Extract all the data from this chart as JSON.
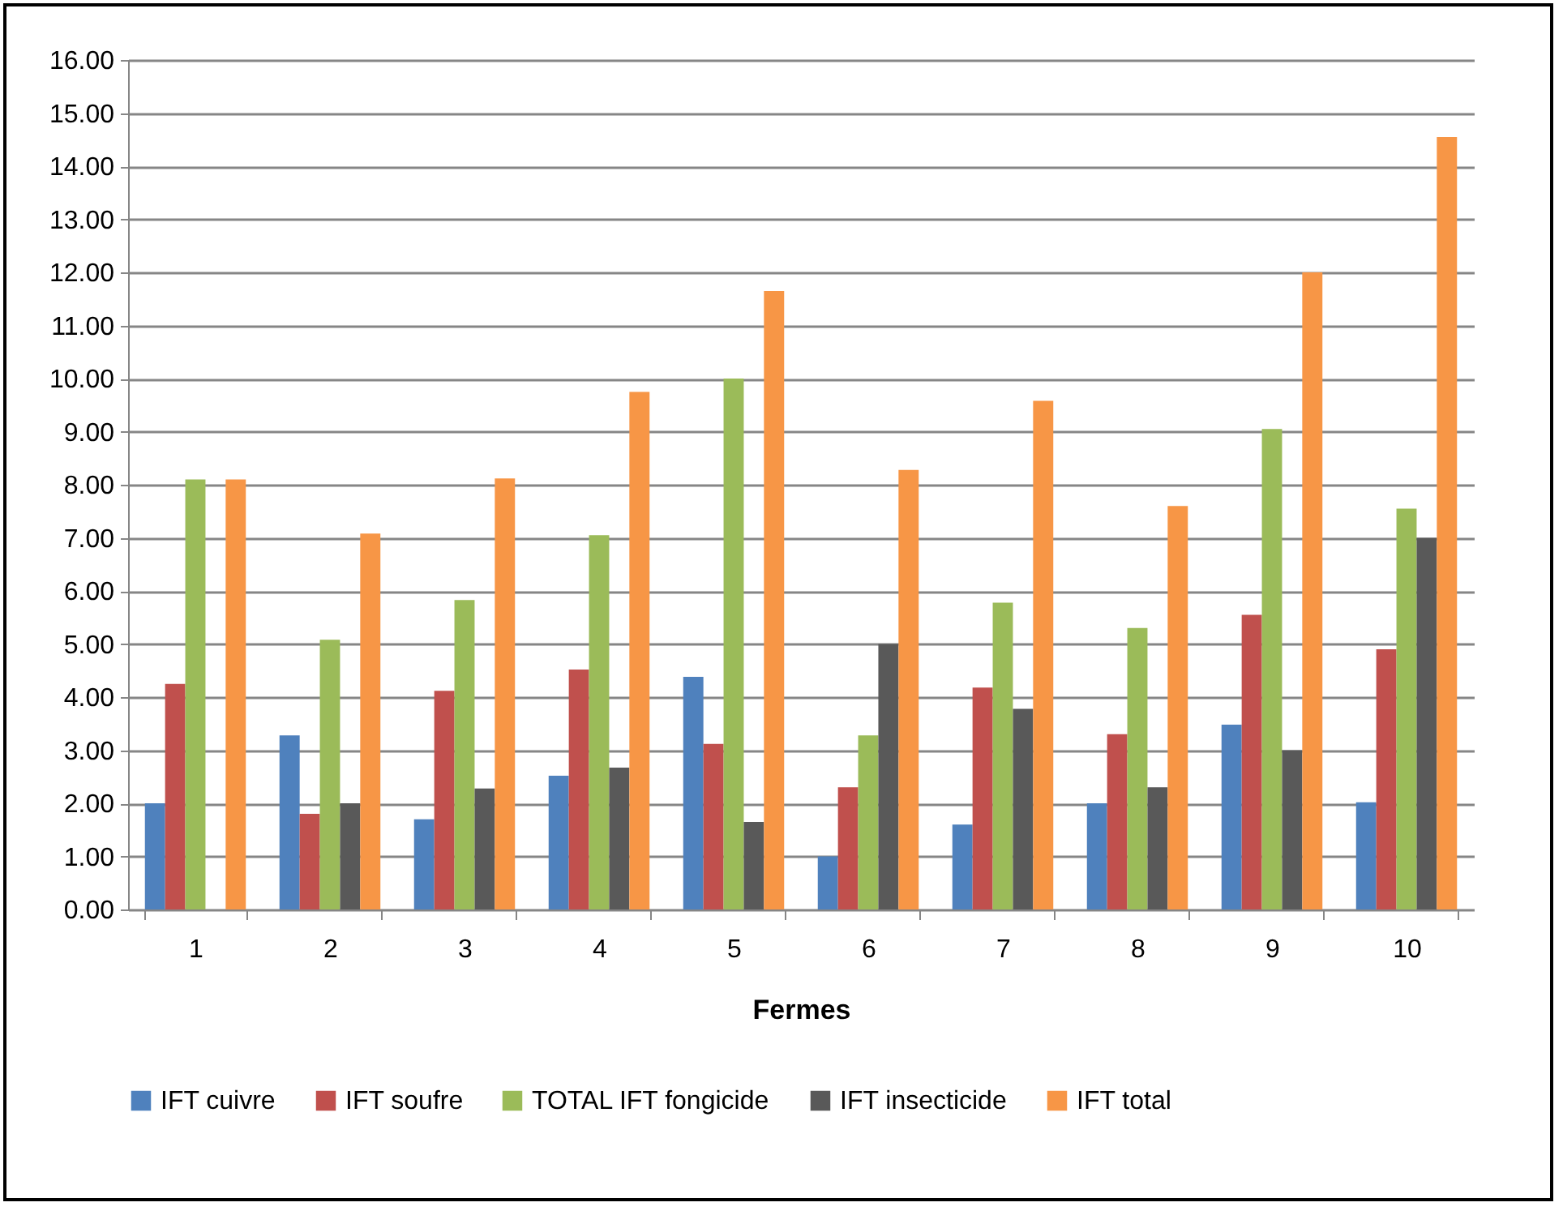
{
  "chart_data": {
    "type": "bar",
    "xlabel": "Fermes",
    "categories": [
      "1",
      "2",
      "3",
      "4",
      "5",
      "6",
      "7",
      "8",
      "9",
      "10"
    ],
    "series": [
      {
        "name": "IFT cuivre",
        "color": "#4f81bd",
        "values": [
          2.0,
          3.28,
          1.7,
          2.52,
          4.38,
          1.0,
          1.6,
          2.0,
          3.48,
          2.02
        ]
      },
      {
        "name": "IFT soufre",
        "color": "#c0504d",
        "values": [
          4.25,
          1.8,
          4.12,
          4.52,
          3.12,
          2.3,
          4.18,
          3.3,
          5.55,
          4.9
        ]
      },
      {
        "name": "TOTAL IFT fongicide",
        "color": "#9bbb59",
        "values": [
          8.1,
          5.08,
          5.83,
          7.05,
          10.0,
          3.28,
          5.78,
          5.3,
          9.05,
          7.55
        ]
      },
      {
        "name": "IFT insecticide",
        "color": "#595959",
        "values": [
          0,
          2.0,
          2.28,
          2.67,
          1.65,
          5.0,
          3.78,
          2.3,
          3.0,
          7.0
        ]
      },
      {
        "name": "IFT total",
        "color": "#f79646",
        "values": [
          8.1,
          7.08,
          8.12,
          9.75,
          11.65,
          8.28,
          9.58,
          7.6,
          12.0,
          14.55
        ]
      }
    ],
    "ylim": [
      0,
      16
    ],
    "yticks": [
      {
        "value": 0,
        "label": "0.00"
      },
      {
        "value": 1,
        "label": "1.00"
      },
      {
        "value": 2,
        "label": "2.00"
      },
      {
        "value": 3,
        "label": "3.00"
      },
      {
        "value": 4,
        "label": "4.00"
      },
      {
        "value": 5,
        "label": "5.00"
      },
      {
        "value": 6,
        "label": "6.00"
      },
      {
        "value": 7,
        "label": "7.00"
      },
      {
        "value": 8,
        "label": "8.00"
      },
      {
        "value": 9,
        "label": "9.00"
      },
      {
        "value": 10,
        "label": "10.00"
      },
      {
        "value": 11,
        "label": "11.00"
      },
      {
        "value": 12,
        "label": "12.00"
      },
      {
        "value": 13,
        "label": "13.00"
      },
      {
        "value": 14,
        "label": "14.00"
      },
      {
        "value": 15,
        "label": "15.00"
      },
      {
        "value": 16,
        "label": "16.00"
      }
    ],
    "grid": "y",
    "legend": "bottom"
  }
}
